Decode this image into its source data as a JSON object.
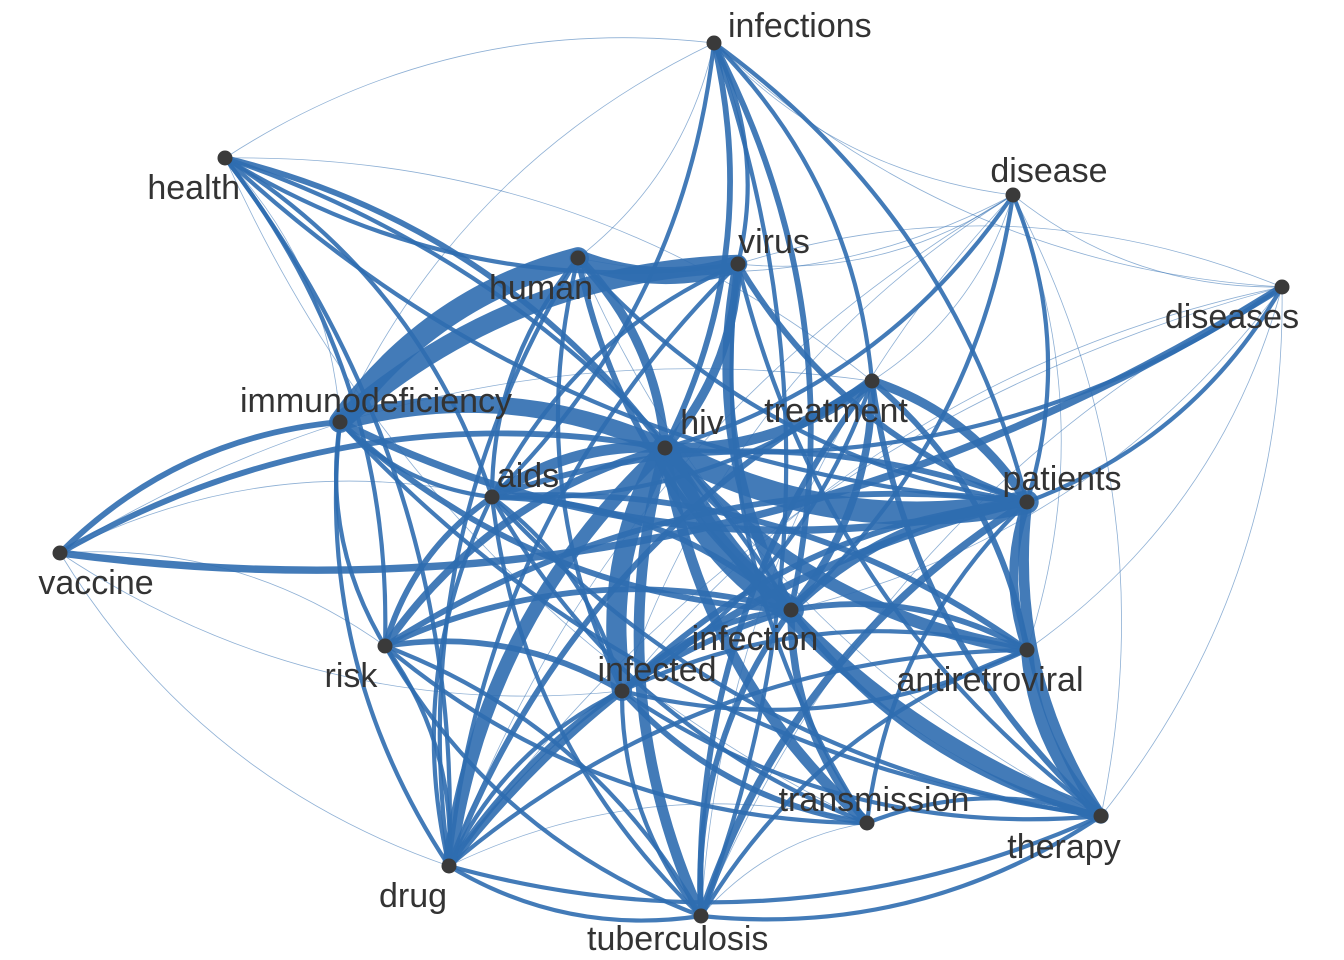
{
  "colors": {
    "edge": "#2f6db0",
    "node": "#3a3a3a",
    "label": "#333333",
    "background": "#ffffff"
  },
  "nodes": [
    {
      "id": "infections",
      "label": "infections"
    },
    {
      "id": "health",
      "label": "health"
    },
    {
      "id": "disease",
      "label": "disease"
    },
    {
      "id": "virus",
      "label": "virus"
    },
    {
      "id": "human",
      "label": "human"
    },
    {
      "id": "diseases",
      "label": "diseases"
    },
    {
      "id": "immunodeficiency",
      "label": "immunodeficiency"
    },
    {
      "id": "treatment",
      "label": "treatment"
    },
    {
      "id": "hiv",
      "label": "hiv"
    },
    {
      "id": "aids",
      "label": "aids"
    },
    {
      "id": "patients",
      "label": "patients"
    },
    {
      "id": "vaccine",
      "label": "vaccine"
    },
    {
      "id": "infection",
      "label": "infection"
    },
    {
      "id": "risk",
      "label": "risk"
    },
    {
      "id": "antiretroviral",
      "label": "antiretroviral"
    },
    {
      "id": "infected",
      "label": "infected"
    },
    {
      "id": "transmission",
      "label": "transmission"
    },
    {
      "id": "therapy",
      "label": "therapy"
    },
    {
      "id": "drug",
      "label": "drug"
    },
    {
      "id": "tuberculosis",
      "label": "tuberculosis"
    }
  ],
  "edges": [
    [
      "hiv",
      "immunodeficiency",
      10
    ],
    [
      "hiv",
      "patients",
      14
    ],
    [
      "hiv",
      "infection",
      16
    ],
    [
      "hiv",
      "infected",
      12
    ],
    [
      "hiv",
      "therapy",
      9
    ],
    [
      "hiv",
      "antiretroviral",
      7
    ],
    [
      "hiv",
      "drug",
      8
    ],
    [
      "hiv",
      "transmission",
      6
    ],
    [
      "hiv",
      "tuberculosis",
      6
    ],
    [
      "hiv",
      "virus",
      5
    ],
    [
      "hiv",
      "human",
      5
    ],
    [
      "hiv",
      "treatment",
      6
    ],
    [
      "hiv",
      "aids",
      6
    ],
    [
      "hiv",
      "risk",
      4
    ],
    [
      "hiv",
      "vaccine",
      3
    ],
    [
      "hiv",
      "health",
      3
    ],
    [
      "hiv",
      "infections",
      3
    ],
    [
      "hiv",
      "disease",
      2
    ],
    [
      "hiv",
      "diseases",
      2
    ],
    [
      "human",
      "immunodeficiency",
      13
    ],
    [
      "human",
      "virus",
      10
    ],
    [
      "virus",
      "immunodeficiency",
      11
    ],
    [
      "virus",
      "infection",
      6
    ],
    [
      "virus",
      "infections",
      2
    ],
    [
      "virus",
      "patients",
      3
    ],
    [
      "virus",
      "drug",
      2
    ],
    [
      "virus",
      "transmission",
      2
    ],
    [
      "virus",
      "aids",
      2
    ],
    [
      "virus",
      "disease",
      1
    ],
    [
      "virus",
      "therapy",
      2
    ],
    [
      "human",
      "infection",
      3
    ],
    [
      "human",
      "infected",
      2
    ],
    [
      "human",
      "patients",
      2
    ],
    [
      "human",
      "aids",
      2
    ],
    [
      "human",
      "infections",
      1
    ],
    [
      "human",
      "drug",
      2
    ],
    [
      "human",
      "therapy",
      1
    ],
    [
      "human",
      "disease",
      1
    ],
    [
      "immunodeficiency",
      "vaccine",
      3
    ],
    [
      "immunodeficiency",
      "patients",
      4
    ],
    [
      "immunodeficiency",
      "infection",
      3
    ],
    [
      "immunodeficiency",
      "drug",
      2
    ],
    [
      "immunodeficiency",
      "risk",
      2
    ],
    [
      "immunodeficiency",
      "therapy",
      2
    ],
    [
      "immunodeficiency",
      "health",
      1
    ],
    [
      "immunodeficiency",
      "aids",
      2
    ],
    [
      "patients",
      "therapy",
      6
    ],
    [
      "patients",
      "antiretroviral",
      5
    ],
    [
      "patients",
      "treatment",
      5
    ],
    [
      "patients",
      "infection",
      5
    ],
    [
      "patients",
      "tuberculosis",
      4
    ],
    [
      "patients",
      "drug",
      4
    ],
    [
      "patients",
      "infected",
      3
    ],
    [
      "patients",
      "aids",
      3
    ],
    [
      "patients",
      "disease",
      2
    ],
    [
      "patients",
      "diseases",
      2
    ],
    [
      "patients",
      "risk",
      3
    ],
    [
      "patients",
      "infections",
      2
    ],
    [
      "patients",
      "transmission",
      2
    ],
    [
      "antiretroviral",
      "therapy",
      7
    ],
    [
      "antiretroviral",
      "treatment",
      3
    ],
    [
      "antiretroviral",
      "drug",
      2
    ],
    [
      "antiretroviral",
      "aids",
      3
    ],
    [
      "antiretroviral",
      "infected",
      2
    ],
    [
      "antiretroviral",
      "infection",
      3
    ],
    [
      "antiretroviral",
      "tuberculosis",
      2
    ],
    [
      "antiretroviral",
      "disease",
      1
    ],
    [
      "antiretroviral",
      "diseases",
      1
    ],
    [
      "infection",
      "transmission",
      4
    ],
    [
      "infection",
      "risk",
      3
    ],
    [
      "infection",
      "treatment",
      4
    ],
    [
      "infection",
      "infected",
      3
    ],
    [
      "infection",
      "tuberculosis",
      3
    ],
    [
      "infection",
      "therapy",
      3
    ],
    [
      "infection",
      "drug",
      3
    ],
    [
      "infection",
      "infections",
      3
    ],
    [
      "infection",
      "aids",
      3
    ],
    [
      "infection",
      "disease",
      2
    ],
    [
      "infection",
      "health",
      2
    ],
    [
      "infection",
      "diseases",
      1
    ],
    [
      "infected",
      "risk",
      3
    ],
    [
      "infected",
      "transmission",
      3
    ],
    [
      "infected",
      "tuberculosis",
      2
    ],
    [
      "infected",
      "drug",
      2
    ],
    [
      "infected",
      "aids",
      2
    ],
    [
      "infected",
      "therapy",
      2
    ],
    [
      "infected",
      "treatment",
      2
    ],
    [
      "infected",
      "antiretroviral",
      2
    ],
    [
      "aids",
      "risk",
      3
    ],
    [
      "aids",
      "drug",
      2
    ],
    [
      "aids",
      "transmission",
      2
    ],
    [
      "aids",
      "vaccine",
      1
    ],
    [
      "aids",
      "therapy",
      2
    ],
    [
      "aids",
      "tuberculosis",
      2
    ],
    [
      "aids",
      "health",
      2
    ],
    [
      "aids",
      "infections",
      2
    ],
    [
      "aids",
      "treatment",
      2
    ],
    [
      "treatment",
      "therapy",
      3
    ],
    [
      "treatment",
      "drug",
      3
    ],
    [
      "treatment",
      "tuberculosis",
      3
    ],
    [
      "treatment",
      "infections",
      2
    ],
    [
      "treatment",
      "vaccine",
      1
    ],
    [
      "treatment",
      "disease",
      1
    ],
    [
      "treatment",
      "health",
      1
    ],
    [
      "drug",
      "tuberculosis",
      2
    ],
    [
      "drug",
      "risk",
      2
    ],
    [
      "drug",
      "therapy",
      2
    ],
    [
      "drug",
      "health",
      2
    ],
    [
      "tuberculosis",
      "therapy",
      2
    ],
    [
      "tuberculosis",
      "infections",
      2
    ],
    [
      "tuberculosis",
      "risk",
      2
    ],
    [
      "therapy",
      "transmission",
      2
    ],
    [
      "therapy",
      "diseases",
      1
    ],
    [
      "therapy",
      "disease",
      1
    ],
    [
      "risk",
      "health",
      2
    ],
    [
      "risk",
      "transmission",
      2
    ],
    [
      "risk",
      "vaccine",
      1
    ],
    [
      "risk",
      "tuberculosis",
      2
    ],
    [
      "vaccine",
      "diseases",
      4
    ],
    [
      "vaccine",
      "infected",
      1
    ],
    [
      "vaccine",
      "drug",
      1
    ],
    [
      "infections",
      "diseases",
      1
    ],
    [
      "infections",
      "disease",
      1
    ],
    [
      "infections",
      "health",
      1
    ],
    [
      "infections",
      "immunodeficiency",
      1
    ],
    [
      "health",
      "virus",
      2
    ],
    [
      "health",
      "patients",
      2
    ],
    [
      "health",
      "transmission",
      1
    ],
    [
      "disease",
      "diseases",
      1
    ],
    [
      "disease",
      "infected",
      1
    ],
    [
      "disease",
      "drug",
      1
    ],
    [
      "disease",
      "tuberculosis",
      1
    ],
    [
      "diseases",
      "infected",
      1
    ],
    [
      "diseases",
      "tuberculosis",
      1
    ],
    [
      "diseases",
      "drug",
      1
    ],
    [
      "diseases",
      "virus",
      1
    ],
    [
      "transmission",
      "tuberculosis",
      1
    ],
    [
      "transmission",
      "drug",
      1
    ]
  ]
}
